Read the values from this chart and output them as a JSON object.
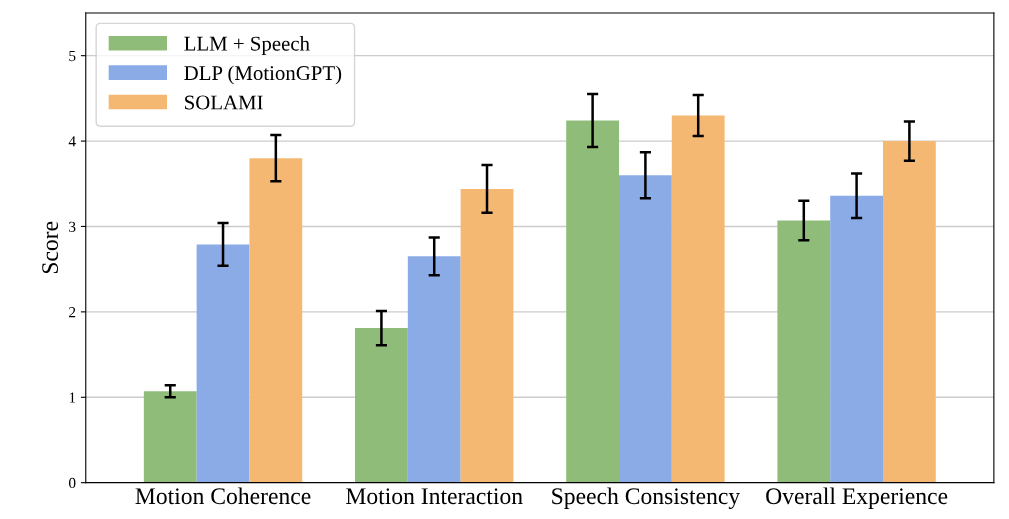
{
  "chart_data": {
    "type": "bar",
    "ylabel": "Score",
    "categories": [
      "Motion Coherence",
      "Motion Interaction",
      "Speech Consistency",
      "Overall Experience"
    ],
    "series": [
      {
        "name": "LLM + Speech",
        "color": "#8fbc78",
        "values": [
          1.07,
          1.81,
          4.24,
          3.07
        ],
        "errors": [
          0.07,
          0.2,
          0.31,
          0.23
        ]
      },
      {
        "name": "DLP (MotionGPT)",
        "color": "#8aabe6",
        "values": [
          2.79,
          2.65,
          3.6,
          3.36
        ],
        "errors": [
          0.25,
          0.22,
          0.27,
          0.26
        ]
      },
      {
        "name": "SOLAMI",
        "color": "#f5b872",
        "values": [
          3.8,
          3.44,
          4.3,
          4.0
        ],
        "errors": [
          0.27,
          0.28,
          0.24,
          0.23
        ]
      }
    ],
    "ylim": [
      0,
      5.5
    ],
    "yticks": [
      0,
      1,
      2,
      3,
      4,
      5
    ],
    "grid": "y",
    "legend": "top left"
  }
}
